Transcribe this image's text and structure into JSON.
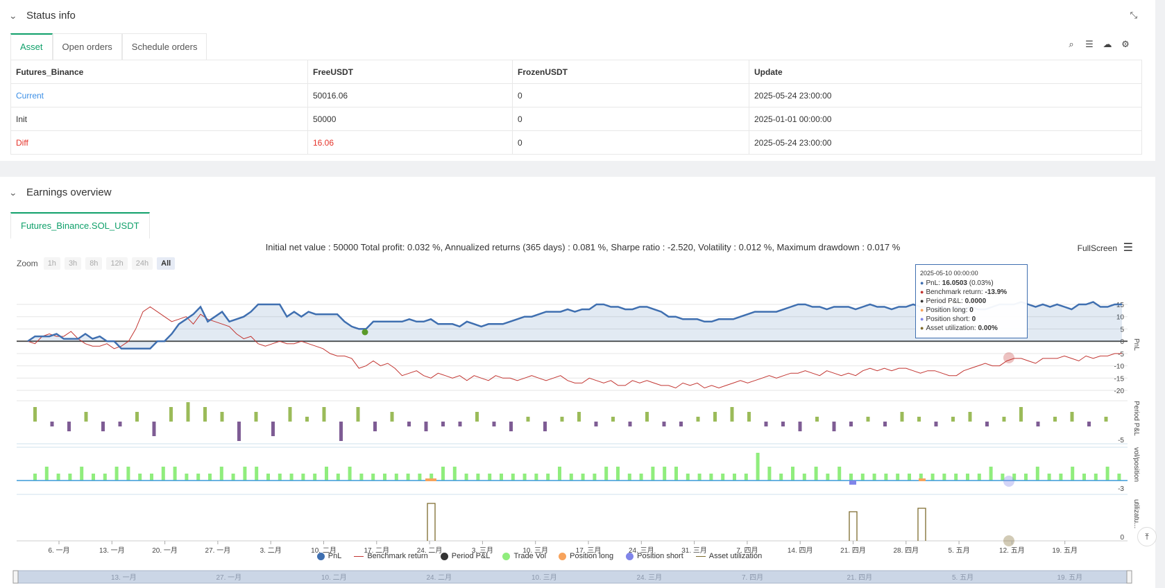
{
  "status": {
    "title": "Status info",
    "tabs": [
      "Asset",
      "Open orders",
      "Schedule orders"
    ],
    "table": {
      "headers": [
        "Futures_Binance",
        "FreeUSDT",
        "FrozenUSDT",
        "Update"
      ],
      "rows": [
        [
          "Current",
          "50016.06",
          "0",
          "2025-05-24 23:00:00"
        ],
        [
          "Init",
          "50000",
          "0",
          "2025-01-01 00:00:00"
        ],
        [
          "Diff",
          "16.06",
          "0",
          "2025-05-24 23:00:00"
        ]
      ]
    }
  },
  "earnings": {
    "title": "Earnings overview",
    "tab": "Futures_Binance.SOL_USDT",
    "summary": "Initial net value : 50000 Total profit: 0.032 %, Annualized returns (365 days) : 0.081 %, Sharpe ratio : -2.520, Volatility : 0.012 %, Maximum drawdown : 0.017 %",
    "fullscreen": "FullScreen",
    "zoom_label": "Zoom",
    "zoom_buttons": [
      "1h",
      "3h",
      "8h",
      "12h",
      "24h",
      "All"
    ],
    "tooltip": {
      "time": "2025-05-10 00:00:00",
      "pnl_label": "PnL:",
      "pnl_value": "16.0503",
      "pnl_pct": "(0.03%)",
      "bench_label": "Benchmark return:",
      "bench_value": "-13.9%",
      "period_label": "Period P&L:",
      "period_value": "0.0000",
      "long_label": "Position long:",
      "long_value": "0",
      "short_label": "Position short:",
      "short_value": "0",
      "util_label": "Asset utilization:",
      "util_value": "0.00%"
    },
    "axis_labels": {
      "pnl": "PnL",
      "period": "Period P&L",
      "vol": "vol/position",
      "util": "utilizatu..."
    },
    "legend": [
      "PnL",
      "Benchmark return",
      "Period P&L",
      "Trade Vol",
      "Position long",
      "Position short",
      "Asset utilization"
    ],
    "colors": {
      "pnl": "#3f6fb0",
      "benchmark": "#c23531",
      "period": "#333333",
      "trade_vol": "#90ed7d",
      "long": "#f7a35c",
      "short": "#8085e9",
      "util": "#7d6b2d",
      "accent": "#0fa06a"
    }
  },
  "chart_data": {
    "type": "line",
    "x_ticks": [
      "6. 一月",
      "13. 一月",
      "20. 一月",
      "27. 一月",
      "3. 二月",
      "10. 二月",
      "17. 二月",
      "24. 二月",
      "3. 三月",
      "10. 三月",
      "17. 三月",
      "24. 三月",
      "31. 三月",
      "7. 四月",
      "14. 四月",
      "21. 四月",
      "28. 四月",
      "5. 五月",
      "12. 五月",
      "19. 五月"
    ],
    "navigator_ticks": [
      "13. 一月",
      "27. 一月",
      "10. 二月",
      "24. 二月",
      "10. 三月",
      "24. 三月",
      "7. 四月",
      "21. 四月",
      "5. 五月",
      "19. 五月"
    ],
    "pnl_yticks": [
      "15",
      "10",
      "5",
      "0",
      "-5",
      "-10",
      "-15",
      "-20"
    ],
    "period_yticks": [
      "-5"
    ],
    "vol_yticks": [
      "-3"
    ],
    "util_yticks": [
      "0"
    ],
    "series": [
      {
        "name": "PnL",
        "values": [
          0,
          2,
          2,
          2,
          3,
          1,
          1,
          1,
          3,
          1,
          2,
          0,
          0,
          -3,
          -3,
          -3,
          -3,
          -3,
          0,
          0,
          3,
          7,
          9,
          11,
          14,
          8,
          10,
          12,
          8,
          9,
          10,
          12,
          15,
          15,
          15,
          15,
          10,
          12,
          10,
          12,
          11,
          11,
          11,
          11,
          8,
          6,
          5,
          5,
          8,
          8,
          8,
          8,
          8,
          9,
          8,
          8,
          9,
          7,
          7,
          7,
          6,
          8,
          7,
          6,
          7,
          7,
          7,
          8,
          9,
          10,
          10,
          11,
          12,
          12,
          12,
          13,
          12,
          13,
          13,
          15,
          15,
          14,
          14,
          13,
          13,
          14,
          14,
          13,
          12,
          10,
          10,
          9,
          9,
          9,
          8,
          8,
          9,
          9,
          9,
          10,
          11,
          12,
          12,
          12,
          12,
          13,
          14,
          15,
          15,
          14,
          14,
          13,
          14,
          14,
          14,
          13,
          14,
          15,
          14,
          14,
          13,
          14,
          14,
          15,
          14,
          14,
          13,
          14,
          13,
          14,
          13,
          14,
          13,
          13,
          14,
          15,
          15,
          15,
          16,
          15,
          14,
          15,
          14,
          15,
          14,
          13,
          15,
          15,
          16,
          14,
          14,
          15,
          15
        ]
      },
      {
        "name": "Benchmark return",
        "values": [
          0,
          -1,
          2,
          3,
          2,
          2,
          4,
          1,
          -1,
          -2,
          -2,
          -1,
          -3,
          -2,
          0,
          5,
          12,
          14,
          12,
          10,
          8,
          9,
          10,
          7,
          11,
          9,
          8,
          7,
          6,
          3,
          1,
          2,
          -1,
          -2,
          -1,
          0,
          -1,
          -1,
          0,
          -1,
          -2,
          -3,
          -5,
          -6,
          -6,
          -7,
          -11,
          -10,
          -8,
          -10,
          -9,
          -11,
          -14,
          -13,
          -12,
          -14,
          -15,
          -13,
          -14,
          -15,
          -14,
          -16,
          -14,
          -15,
          -16,
          -14,
          -15,
          -15,
          -16,
          -15,
          -14,
          -15,
          -16,
          -15,
          -14,
          -16,
          -17,
          -17,
          -15,
          -16,
          -17,
          -16,
          -18,
          -18,
          -16,
          -17,
          -16,
          -17,
          -18,
          -18,
          -19,
          -17,
          -18,
          -17,
          -19,
          -18,
          -19,
          -18,
          -17,
          -16,
          -17,
          -16,
          -15,
          -14,
          -15,
          -14,
          -13,
          -13,
          -12,
          -13,
          -14,
          -12,
          -13,
          -14,
          -13,
          -14,
          -12,
          -11,
          -12,
          -11,
          -12,
          -11,
          -11,
          -12,
          -13,
          -12,
          -12,
          -13,
          -14,
          -14,
          -12,
          -11,
          -10,
          -9,
          -10,
          -10,
          -8,
          -7,
          -7,
          -8,
          -9,
          -7,
          -7,
          -7,
          -6,
          -7,
          -8,
          -6,
          -7,
          -6,
          -6,
          -5,
          -5
        ]
      }
    ],
    "period_pnl": [
      3,
      -1,
      -2,
      2,
      -2,
      -1,
      2,
      -3,
      3,
      4,
      3,
      2,
      -4,
      2,
      -3,
      3,
      1,
      3,
      -4,
      3,
      -2,
      2,
      -1,
      -2,
      -1,
      -1,
      2,
      -1,
      -2,
      1,
      -2,
      1,
      2,
      -1,
      1,
      -1,
      2,
      -1,
      -1,
      1,
      2,
      3,
      2,
      -1,
      -1,
      -2,
      1,
      -2,
      -1,
      1,
      -1,
      2,
      1,
      -1,
      1,
      2,
      -1,
      1,
      3,
      -1,
      1,
      2,
      -1,
      1,
      -1
    ],
    "trade_vol": [
      1,
      2,
      1,
      1,
      2,
      1,
      1,
      2,
      2,
      1,
      1,
      2,
      2,
      1,
      1,
      1,
      2,
      1,
      2,
      2,
      1,
      1,
      1,
      1,
      1,
      2,
      1,
      2,
      1,
      1,
      1,
      1,
      1,
      1,
      1,
      2,
      2,
      1,
      1,
      1,
      1,
      1,
      1,
      1,
      1,
      2,
      1,
      1,
      1,
      2,
      2,
      1,
      1,
      2,
      2,
      2,
      1,
      1,
      1,
      1,
      1,
      1,
      4,
      2,
      1,
      2,
      1,
      2,
      1,
      2,
      1,
      1,
      1,
      1,
      1,
      1,
      1,
      1,
      1,
      1,
      1,
      1,
      2,
      1,
      1,
      1,
      2,
      1,
      1,
      2,
      1,
      1,
      2,
      1
    ],
    "asset_utilization_spikes": [
      "24. 二月",
      "21. 四月",
      "28. 四月"
    ]
  }
}
